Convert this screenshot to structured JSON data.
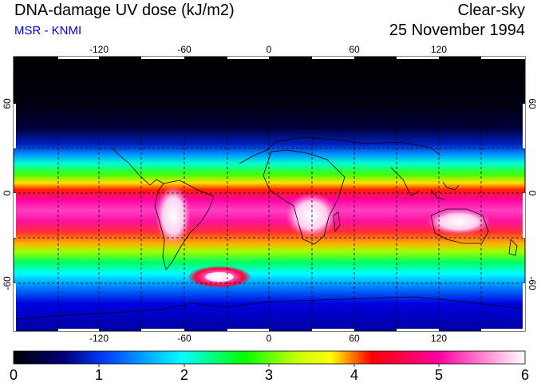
{
  "header": {
    "title": "DNA-damage UV dose (kJ/m2)",
    "subtitle": "MSR - KNMI",
    "sky": "Clear-sky",
    "date": "25 November 1994"
  },
  "axes": {
    "lon_ticks": [
      "-120",
      "-60",
      "0",
      "60",
      "120"
    ],
    "lat_ticks": [
      "60",
      "0",
      "-60"
    ]
  },
  "colorbar": {
    "labels": [
      "0",
      "1",
      "2",
      "3",
      "4",
      "5",
      "6"
    ],
    "colors": [
      "#000000",
      "#0000c8",
      "#0060ff",
      "#00ffff",
      "#00ff00",
      "#ffff00",
      "#ff0000",
      "#ff00a0",
      "#ffffff"
    ]
  }
}
